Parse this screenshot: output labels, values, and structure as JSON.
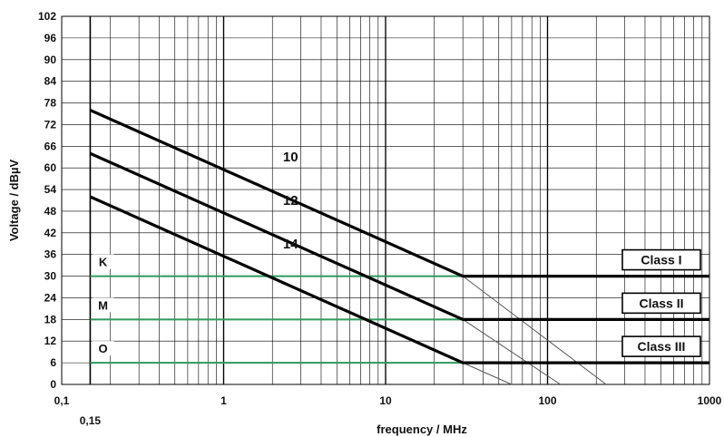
{
  "chart_data": {
    "type": "line",
    "title": "",
    "xlabel": "frequency / MHz",
    "ylabel": "Voltage / dBµV",
    "x_scale": "log",
    "xlim": [
      0.1,
      1000
    ],
    "ylim": [
      0,
      102
    ],
    "x_ticks": [
      {
        "value": 0.1,
        "label": "0,1"
      },
      {
        "value": 1,
        "label": "1"
      },
      {
        "value": 10,
        "label": "10"
      },
      {
        "value": 100,
        "label": "100"
      },
      {
        "value": 1000,
        "label": "1000"
      }
    ],
    "x_extra_tick": {
      "value": 0.15,
      "label": "0,15"
    },
    "y_ticks": [
      0,
      6,
      12,
      18,
      24,
      30,
      36,
      42,
      48,
      54,
      60,
      66,
      72,
      78,
      84,
      90,
      96,
      102
    ],
    "grid": true,
    "series": [
      {
        "name": "10",
        "label_at": {
          "x": 2.0,
          "y": 63
        },
        "points": [
          [
            0.15,
            76
          ],
          [
            30,
            30
          ],
          [
            1000,
            30
          ]
        ],
        "extension": [
          [
            30,
            30
          ],
          [
            230,
            0
          ]
        ]
      },
      {
        "name": "12",
        "label_at": {
          "x": 2.0,
          "y": 51
        },
        "points": [
          [
            0.15,
            64
          ],
          [
            30,
            18
          ],
          [
            1000,
            18
          ]
        ],
        "extension": [
          [
            30,
            18
          ],
          [
            120,
            0
          ]
        ]
      },
      {
        "name": "14",
        "label_at": {
          "x": 2.0,
          "y": 39
        },
        "points": [
          [
            0.15,
            52
          ],
          [
            30,
            6
          ],
          [
            1000,
            6
          ]
        ],
        "extension": [
          [
            30,
            6
          ],
          [
            60,
            0
          ]
        ]
      }
    ],
    "levels": [
      {
        "name": "K",
        "y": 30
      },
      {
        "name": "M",
        "y": 18
      },
      {
        "name": "O",
        "y": 6
      }
    ],
    "classes": [
      {
        "label": "Class I",
        "y": 30
      },
      {
        "label": "Class II",
        "y": 18
      },
      {
        "label": "Class III",
        "y": 6
      }
    ],
    "colors": {
      "curve": "#000000",
      "level": "#2e9a5c",
      "grid": "#000000",
      "extension": "#555555"
    }
  }
}
